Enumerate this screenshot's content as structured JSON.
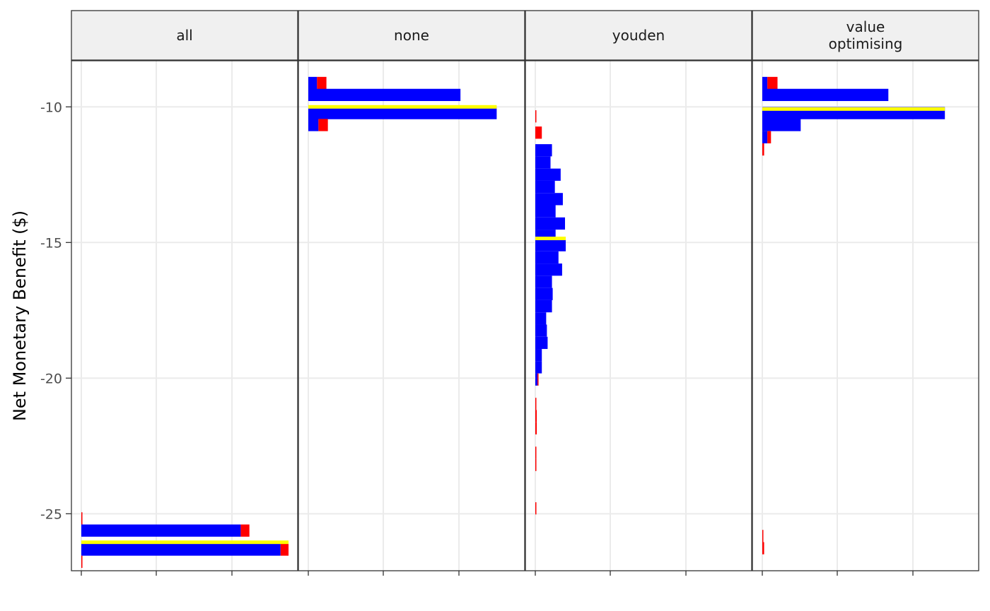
{
  "chart_data": {
    "type": "histogram",
    "ylabel": "Net Monetary Benefit ($)",
    "ylim": [
      -27.1,
      -8.3
    ],
    "yticks": [
      -10,
      -15,
      -20,
      -25
    ],
    "ytick_labels": [
      "-10",
      "-15",
      "-20",
      "-25"
    ],
    "bin_width": 0.45,
    "count_max": 2850,
    "grid": true,
    "colors": {
      "positive_fill": "#0000ff",
      "negative_fill": "#ff0000",
      "median_line": "#ffff00",
      "strip_background": "#f0f0f0",
      "grid": "#ebebeb",
      "panel_border": "#333333"
    },
    "panels": [
      {
        "label": "all",
        "median": -26.05,
        "bins": [
          {
            "center": -25.17,
            "blue": 0,
            "red": 15
          },
          {
            "center": -25.62,
            "blue": 2200,
            "red": 120
          },
          {
            "center": -26.32,
            "blue": 2750,
            "red": 110
          },
          {
            "center": -26.77,
            "blue": 0,
            "red": 15
          }
        ]
      },
      {
        "label": "none",
        "median": -10.0,
        "bins": [
          {
            "center": -9.12,
            "blue": 120,
            "red": 130
          },
          {
            "center": -9.56,
            "blue": 2100,
            "red": 0
          },
          {
            "center": -10.23,
            "blue": 2600,
            "red": 0
          },
          {
            "center": -10.67,
            "blue": 140,
            "red": 130
          }
        ]
      },
      {
        "label": "youden",
        "median": -14.85,
        "bins": [
          {
            "center": -10.35,
            "blue": 0,
            "red": 10
          },
          {
            "center": -10.95,
            "blue": 0,
            "red": 90
          },
          {
            "center": -11.6,
            "blue": 230,
            "red": 0
          },
          {
            "center": -12.05,
            "blue": 210,
            "red": 0
          },
          {
            "center": -12.5,
            "blue": 350,
            "red": 0
          },
          {
            "center": -12.95,
            "blue": 270,
            "red": 0
          },
          {
            "center": -13.4,
            "blue": 380,
            "red": 0
          },
          {
            "center": -13.85,
            "blue": 280,
            "red": 0
          },
          {
            "center": -14.3,
            "blue": 410,
            "red": 0
          },
          {
            "center": -14.75,
            "blue": 280,
            "red": 0
          },
          {
            "center": -15.1,
            "blue": 420,
            "red": 0
          },
          {
            "center": -15.55,
            "blue": 320,
            "red": 0
          },
          {
            "center": -16.0,
            "blue": 370,
            "red": 0
          },
          {
            "center": -16.45,
            "blue": 230,
            "red": 0
          },
          {
            "center": -16.9,
            "blue": 240,
            "red": 0
          },
          {
            "center": -17.35,
            "blue": 230,
            "red": 0
          },
          {
            "center": -17.8,
            "blue": 150,
            "red": 0
          },
          {
            "center": -18.25,
            "blue": 160,
            "red": 0
          },
          {
            "center": -18.7,
            "blue": 170,
            "red": 0
          },
          {
            "center": -19.15,
            "blue": 90,
            "red": 0
          },
          {
            "center": -19.6,
            "blue": 90,
            "red": 0
          },
          {
            "center": -20.05,
            "blue": 30,
            "red": 10
          },
          {
            "center": -20.95,
            "blue": 0,
            "red": 8
          },
          {
            "center": -21.4,
            "blue": 0,
            "red": 20
          },
          {
            "center": -21.85,
            "blue": 0,
            "red": 20
          },
          {
            "center": -22.75,
            "blue": 0,
            "red": 8
          },
          {
            "center": -23.2,
            "blue": 0,
            "red": 8
          },
          {
            "center": -24.8,
            "blue": 0,
            "red": 10
          }
        ]
      },
      {
        "label": "value\noptimising",
        "median": -10.08,
        "bins": [
          {
            "center": -9.12,
            "blue": 70,
            "red": 140
          },
          {
            "center": -9.56,
            "blue": 1740,
            "red": 0
          },
          {
            "center": -10.23,
            "blue": 2520,
            "red": 0
          },
          {
            "center": -10.67,
            "blue": 530,
            "red": 0
          },
          {
            "center": -11.12,
            "blue": 70,
            "red": 50
          },
          {
            "center": -11.57,
            "blue": 0,
            "red": 25
          },
          {
            "center": -25.82,
            "blue": 0,
            "red": 12
          },
          {
            "center": -26.27,
            "blue": 0,
            "red": 25
          }
        ]
      }
    ]
  }
}
